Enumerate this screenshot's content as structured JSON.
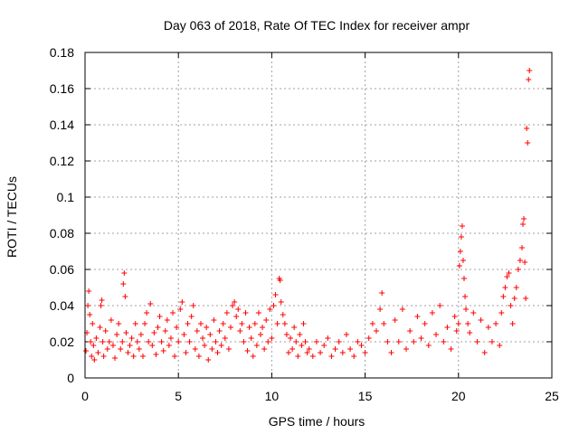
{
  "chart_data": {
    "type": "scatter",
    "title": "Day 063 of 2018, Rate Of TEC Index for receiver ampr",
    "xlabel": "GPS time / hours",
    "ylabel": "ROTI / TECUs",
    "xlim": [
      0,
      25
    ],
    "ylim": [
      0,
      0.18
    ],
    "x_ticks": [
      0,
      5,
      10,
      15,
      20,
      25
    ],
    "x_tick_labels": [
      "0",
      "5",
      "10",
      "15",
      "20",
      "25"
    ],
    "y_ticks": [
      0,
      0.02,
      0.04,
      0.06,
      0.08,
      0.1,
      0.12,
      0.14,
      0.16,
      0.18
    ],
    "y_tick_labels": [
      "0",
      "0.02",
      "0.04",
      "0.06",
      "0.08",
      "0.1",
      "0.12",
      "0.14",
      "0.16",
      "0.18"
    ],
    "grid": true,
    "marker": "+",
    "color": "#ff0000",
    "series": [
      {
        "name": "ROTI",
        "points": [
          [
            0.05,
            0.015
          ],
          [
            0.1,
            0.025
          ],
          [
            0.15,
            0.04
          ],
          [
            0.2,
            0.048
          ],
          [
            0.25,
            0.035
          ],
          [
            0.3,
            0.02
          ],
          [
            0.35,
            0.012
          ],
          [
            0.4,
            0.03
          ],
          [
            0.45,
            0.018
          ],
          [
            0.5,
            0.01
          ],
          [
            0.6,
            0.022
          ],
          [
            0.7,
            0.014
          ],
          [
            0.8,
            0.028
          ],
          [
            0.85,
            0.04
          ],
          [
            0.9,
            0.043
          ],
          [
            0.95,
            0.02
          ],
          [
            1.0,
            0.012
          ],
          [
            1.1,
            0.026
          ],
          [
            1.2,
            0.016
          ],
          [
            1.3,
            0.02
          ],
          [
            1.4,
            0.032
          ],
          [
            1.5,
            0.018
          ],
          [
            1.6,
            0.011
          ],
          [
            1.7,
            0.024
          ],
          [
            1.8,
            0.03
          ],
          [
            1.9,
            0.016
          ],
          [
            2.0,
            0.02
          ],
          [
            2.05,
            0.052
          ],
          [
            2.1,
            0.058
          ],
          [
            2.15,
            0.045
          ],
          [
            2.2,
            0.025
          ],
          [
            2.3,
            0.014
          ],
          [
            2.4,
            0.018
          ],
          [
            2.5,
            0.022
          ],
          [
            2.6,
            0.012
          ],
          [
            2.7,
            0.03
          ],
          [
            2.8,
            0.02
          ],
          [
            2.9,
            0.016
          ],
          [
            3.0,
            0.024
          ],
          [
            3.1,
            0.012
          ],
          [
            3.2,
            0.03
          ],
          [
            3.3,
            0.036
          ],
          [
            3.4,
            0.02
          ],
          [
            3.5,
            0.041
          ],
          [
            3.6,
            0.018
          ],
          [
            3.7,
            0.025
          ],
          [
            3.8,
            0.013
          ],
          [
            3.9,
            0.028
          ],
          [
            4.0,
            0.034
          ],
          [
            4.1,
            0.02
          ],
          [
            4.2,
            0.015
          ],
          [
            4.3,
            0.026
          ],
          [
            4.4,
            0.032
          ],
          [
            4.5,
            0.018
          ],
          [
            4.6,
            0.022
          ],
          [
            4.7,
            0.036
          ],
          [
            4.8,
            0.012
          ],
          [
            4.9,
            0.028
          ],
          [
            5.0,
            0.02
          ],
          [
            5.1,
            0.038
          ],
          [
            5.2,
            0.042
          ],
          [
            5.3,
            0.024
          ],
          [
            5.4,
            0.014
          ],
          [
            5.5,
            0.03
          ],
          [
            5.6,
            0.02
          ],
          [
            5.7,
            0.034
          ],
          [
            5.8,
            0.04
          ],
          [
            5.9,
            0.016
          ],
          [
            6.0,
            0.026
          ],
          [
            6.1,
            0.012
          ],
          [
            6.2,
            0.03
          ],
          [
            6.3,
            0.022
          ],
          [
            6.4,
            0.018
          ],
          [
            6.5,
            0.028
          ],
          [
            6.6,
            0.01
          ],
          [
            6.7,
            0.024
          ],
          [
            6.8,
            0.016
          ],
          [
            6.9,
            0.032
          ],
          [
            7.0,
            0.02
          ],
          [
            7.1,
            0.014
          ],
          [
            7.2,
            0.026
          ],
          [
            7.3,
            0.018
          ],
          [
            7.4,
            0.03
          ],
          [
            7.5,
            0.022
          ],
          [
            7.6,
            0.036
          ],
          [
            7.7,
            0.016
          ],
          [
            7.8,
            0.028
          ],
          [
            7.9,
            0.04
          ],
          [
            8.0,
            0.042
          ],
          [
            8.1,
            0.034
          ],
          [
            8.2,
            0.038
          ],
          [
            8.3,
            0.026
          ],
          [
            8.4,
            0.03
          ],
          [
            8.5,
            0.02
          ],
          [
            8.6,
            0.036
          ],
          [
            8.7,
            0.015
          ],
          [
            8.8,
            0.028
          ],
          [
            8.9,
            0.022
          ],
          [
            9.0,
            0.012
          ],
          [
            9.1,
            0.03
          ],
          [
            9.2,
            0.018
          ],
          [
            9.3,
            0.036
          ],
          [
            9.4,
            0.024
          ],
          [
            9.5,
            0.028
          ],
          [
            9.6,
            0.016
          ],
          [
            9.7,
            0.032
          ],
          [
            9.8,
            0.02
          ],
          [
            9.9,
            0.038
          ],
          [
            10.0,
            0.022
          ],
          [
            10.1,
            0.04
          ],
          [
            10.2,
            0.046
          ],
          [
            10.3,
            0.03
          ],
          [
            10.4,
            0.055
          ],
          [
            10.45,
            0.054
          ],
          [
            10.5,
            0.042
          ],
          [
            10.6,
            0.035
          ],
          [
            10.7,
            0.03
          ],
          [
            10.8,
            0.024
          ],
          [
            10.9,
            0.014
          ],
          [
            11.0,
            0.022
          ],
          [
            11.1,
            0.016
          ],
          [
            11.2,
            0.028
          ],
          [
            11.3,
            0.02
          ],
          [
            11.4,
            0.012
          ],
          [
            11.5,
            0.024
          ],
          [
            11.6,
            0.018
          ],
          [
            11.7,
            0.03
          ],
          [
            11.8,
            0.02
          ],
          [
            11.9,
            0.014
          ],
          [
            12.0,
            0.016
          ],
          [
            12.2,
            0.012
          ],
          [
            12.4,
            0.02
          ],
          [
            12.6,
            0.014
          ],
          [
            12.8,
            0.018
          ],
          [
            13.0,
            0.022
          ],
          [
            13.2,
            0.012
          ],
          [
            13.4,
            0.016
          ],
          [
            13.6,
            0.02
          ],
          [
            13.8,
            0.014
          ],
          [
            14.0,
            0.024
          ],
          [
            14.2,
            0.016
          ],
          [
            14.4,
            0.012
          ],
          [
            14.6,
            0.02
          ],
          [
            14.8,
            0.018
          ],
          [
            15.0,
            0.014
          ],
          [
            15.2,
            0.022
          ],
          [
            15.4,
            0.03
          ],
          [
            15.6,
            0.026
          ],
          [
            15.8,
            0.038
          ],
          [
            15.9,
            0.047
          ],
          [
            16.0,
            0.03
          ],
          [
            16.2,
            0.02
          ],
          [
            16.4,
            0.014
          ],
          [
            16.6,
            0.032
          ],
          [
            16.8,
            0.02
          ],
          [
            17.0,
            0.038
          ],
          [
            17.2,
            0.016
          ],
          [
            17.4,
            0.026
          ],
          [
            17.6,
            0.02
          ],
          [
            17.8,
            0.034
          ],
          [
            18.0,
            0.022
          ],
          [
            18.2,
            0.03
          ],
          [
            18.4,
            0.018
          ],
          [
            18.6,
            0.036
          ],
          [
            18.8,
            0.024
          ],
          [
            19.0,
            0.04
          ],
          [
            19.2,
            0.02
          ],
          [
            19.4,
            0.028
          ],
          [
            19.6,
            0.016
          ],
          [
            19.8,
            0.034
          ],
          [
            19.9,
            0.026
          ],
          [
            20.0,
            0.03
          ],
          [
            20.05,
            0.062
          ],
          [
            20.1,
            0.07
          ],
          [
            20.15,
            0.078
          ],
          [
            20.2,
            0.084
          ],
          [
            20.25,
            0.065
          ],
          [
            20.3,
            0.055
          ],
          [
            20.35,
            0.045
          ],
          [
            20.4,
            0.038
          ],
          [
            20.5,
            0.03
          ],
          [
            20.6,
            0.025
          ],
          [
            20.8,
            0.036
          ],
          [
            21.0,
            0.02
          ],
          [
            21.2,
            0.032
          ],
          [
            21.4,
            0.014
          ],
          [
            21.6,
            0.028
          ],
          [
            21.8,
            0.02
          ],
          [
            22.0,
            0.03
          ],
          [
            22.2,
            0.018
          ],
          [
            22.3,
            0.036
          ],
          [
            22.4,
            0.045
          ],
          [
            22.5,
            0.05
          ],
          [
            22.6,
            0.056
          ],
          [
            22.7,
            0.058
          ],
          [
            22.8,
            0.04
          ],
          [
            22.9,
            0.03
          ],
          [
            23.0,
            0.044
          ],
          [
            23.1,
            0.05
          ],
          [
            23.2,
            0.06
          ],
          [
            23.3,
            0.065
          ],
          [
            23.4,
            0.072
          ],
          [
            23.45,
            0.085
          ],
          [
            23.5,
            0.088
          ],
          [
            23.55,
            0.064
          ],
          [
            23.6,
            0.044
          ],
          [
            23.65,
            0.138
          ],
          [
            23.7,
            0.13
          ],
          [
            23.75,
            0.165
          ],
          [
            23.8,
            0.17
          ]
        ]
      }
    ]
  }
}
